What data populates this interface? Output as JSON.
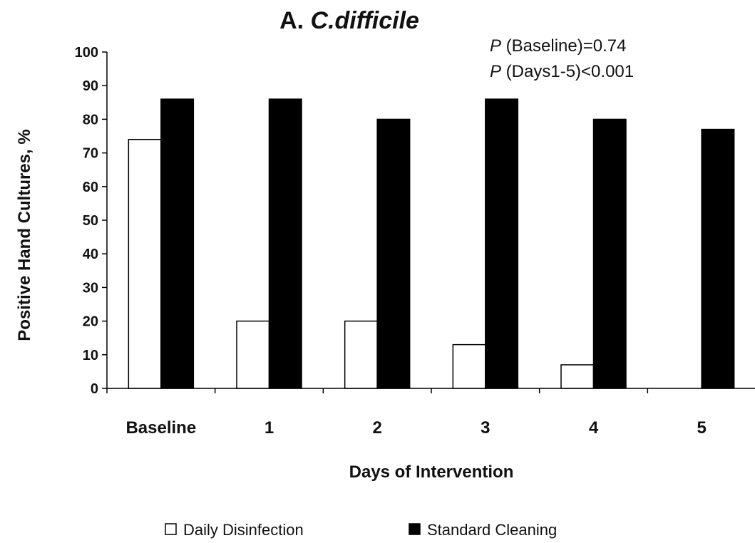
{
  "chart_data": {
    "type": "bar",
    "title_prefix": "A.",
    "title_italic": "C.difficile",
    "xlabel": "Days of Intervention",
    "ylabel": "Positive Hand Cultures, %",
    "ylim": [
      0,
      100
    ],
    "yticks": [
      0,
      10,
      20,
      30,
      40,
      50,
      60,
      70,
      80,
      90,
      100
    ],
    "categories": [
      "Baseline",
      "1",
      "2",
      "3",
      "4",
      "5"
    ],
    "series": [
      {
        "name": "Daily Disinfection",
        "values": [
          74,
          20,
          20,
          13,
          7,
          0
        ],
        "fill": "#ffffff",
        "stroke": "#000000"
      },
      {
        "name": "Standard Cleaning",
        "values": [
          86,
          86,
          80,
          86,
          80,
          77
        ],
        "fill": "#000000",
        "stroke": "#000000"
      }
    ],
    "annotations": [
      {
        "p": "P",
        "text": " (Baseline)=0.74"
      },
      {
        "p": "P",
        "text": " (Days1-5)<0.001"
      }
    ],
    "legend_position": "bottom",
    "grid": false
  }
}
